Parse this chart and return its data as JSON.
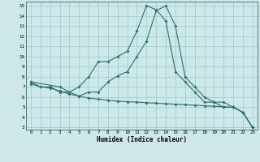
{
  "xlabel": "Humidex (Indice chaleur)",
  "background_color": "#cce8e8",
  "grid_color": "#aacccc",
  "line_color": "#2d7070",
  "xlim": [
    -0.5,
    23.5
  ],
  "ylim": [
    2.8,
    15.4
  ],
  "xticks": [
    0,
    1,
    2,
    3,
    4,
    5,
    6,
    7,
    8,
    9,
    10,
    11,
    12,
    13,
    14,
    15,
    16,
    17,
    18,
    19,
    20,
    21,
    22,
    23
  ],
  "yticks": [
    3,
    4,
    5,
    6,
    7,
    8,
    9,
    10,
    11,
    12,
    13,
    14,
    15
  ],
  "line1_x": [
    0,
    1,
    2,
    3,
    4,
    5,
    6,
    7,
    8,
    9,
    10,
    11,
    12,
    13,
    14,
    15,
    16,
    17,
    18,
    19,
    20,
    21,
    22,
    23
  ],
  "line1_y": [
    7.5,
    7.0,
    7.0,
    6.5,
    6.5,
    7.0,
    8.0,
    9.5,
    9.5,
    10.0,
    10.5,
    12.5,
    15.0,
    14.6,
    13.5,
    8.5,
    7.5,
    6.5,
    5.5,
    5.5,
    5.0,
    5.0,
    4.5,
    3.0
  ],
  "line2_x": [
    0,
    3,
    4,
    5,
    6,
    7,
    8,
    9,
    10,
    11,
    12,
    13,
    14,
    15,
    16,
    17,
    18,
    19,
    20,
    21,
    22,
    23
  ],
  "line2_y": [
    7.5,
    7.0,
    6.5,
    6.1,
    6.5,
    6.5,
    7.5,
    8.1,
    8.5,
    10.0,
    11.5,
    14.5,
    15.0,
    13.0,
    8.0,
    7.0,
    6.0,
    5.5,
    5.5,
    5.0,
    4.5,
    3.0
  ],
  "line3_x": [
    0,
    1,
    2,
    3,
    4,
    5,
    6,
    7,
    8,
    9,
    10,
    11,
    12,
    13,
    14,
    15,
    16,
    17,
    18,
    19,
    20,
    21,
    22,
    23
  ],
  "line3_y": [
    7.3,
    7.0,
    6.9,
    6.6,
    6.3,
    6.1,
    5.9,
    5.8,
    5.7,
    5.6,
    5.55,
    5.5,
    5.45,
    5.4,
    5.35,
    5.3,
    5.25,
    5.2,
    5.15,
    5.1,
    5.05,
    5.0,
    4.5,
    3.0
  ]
}
